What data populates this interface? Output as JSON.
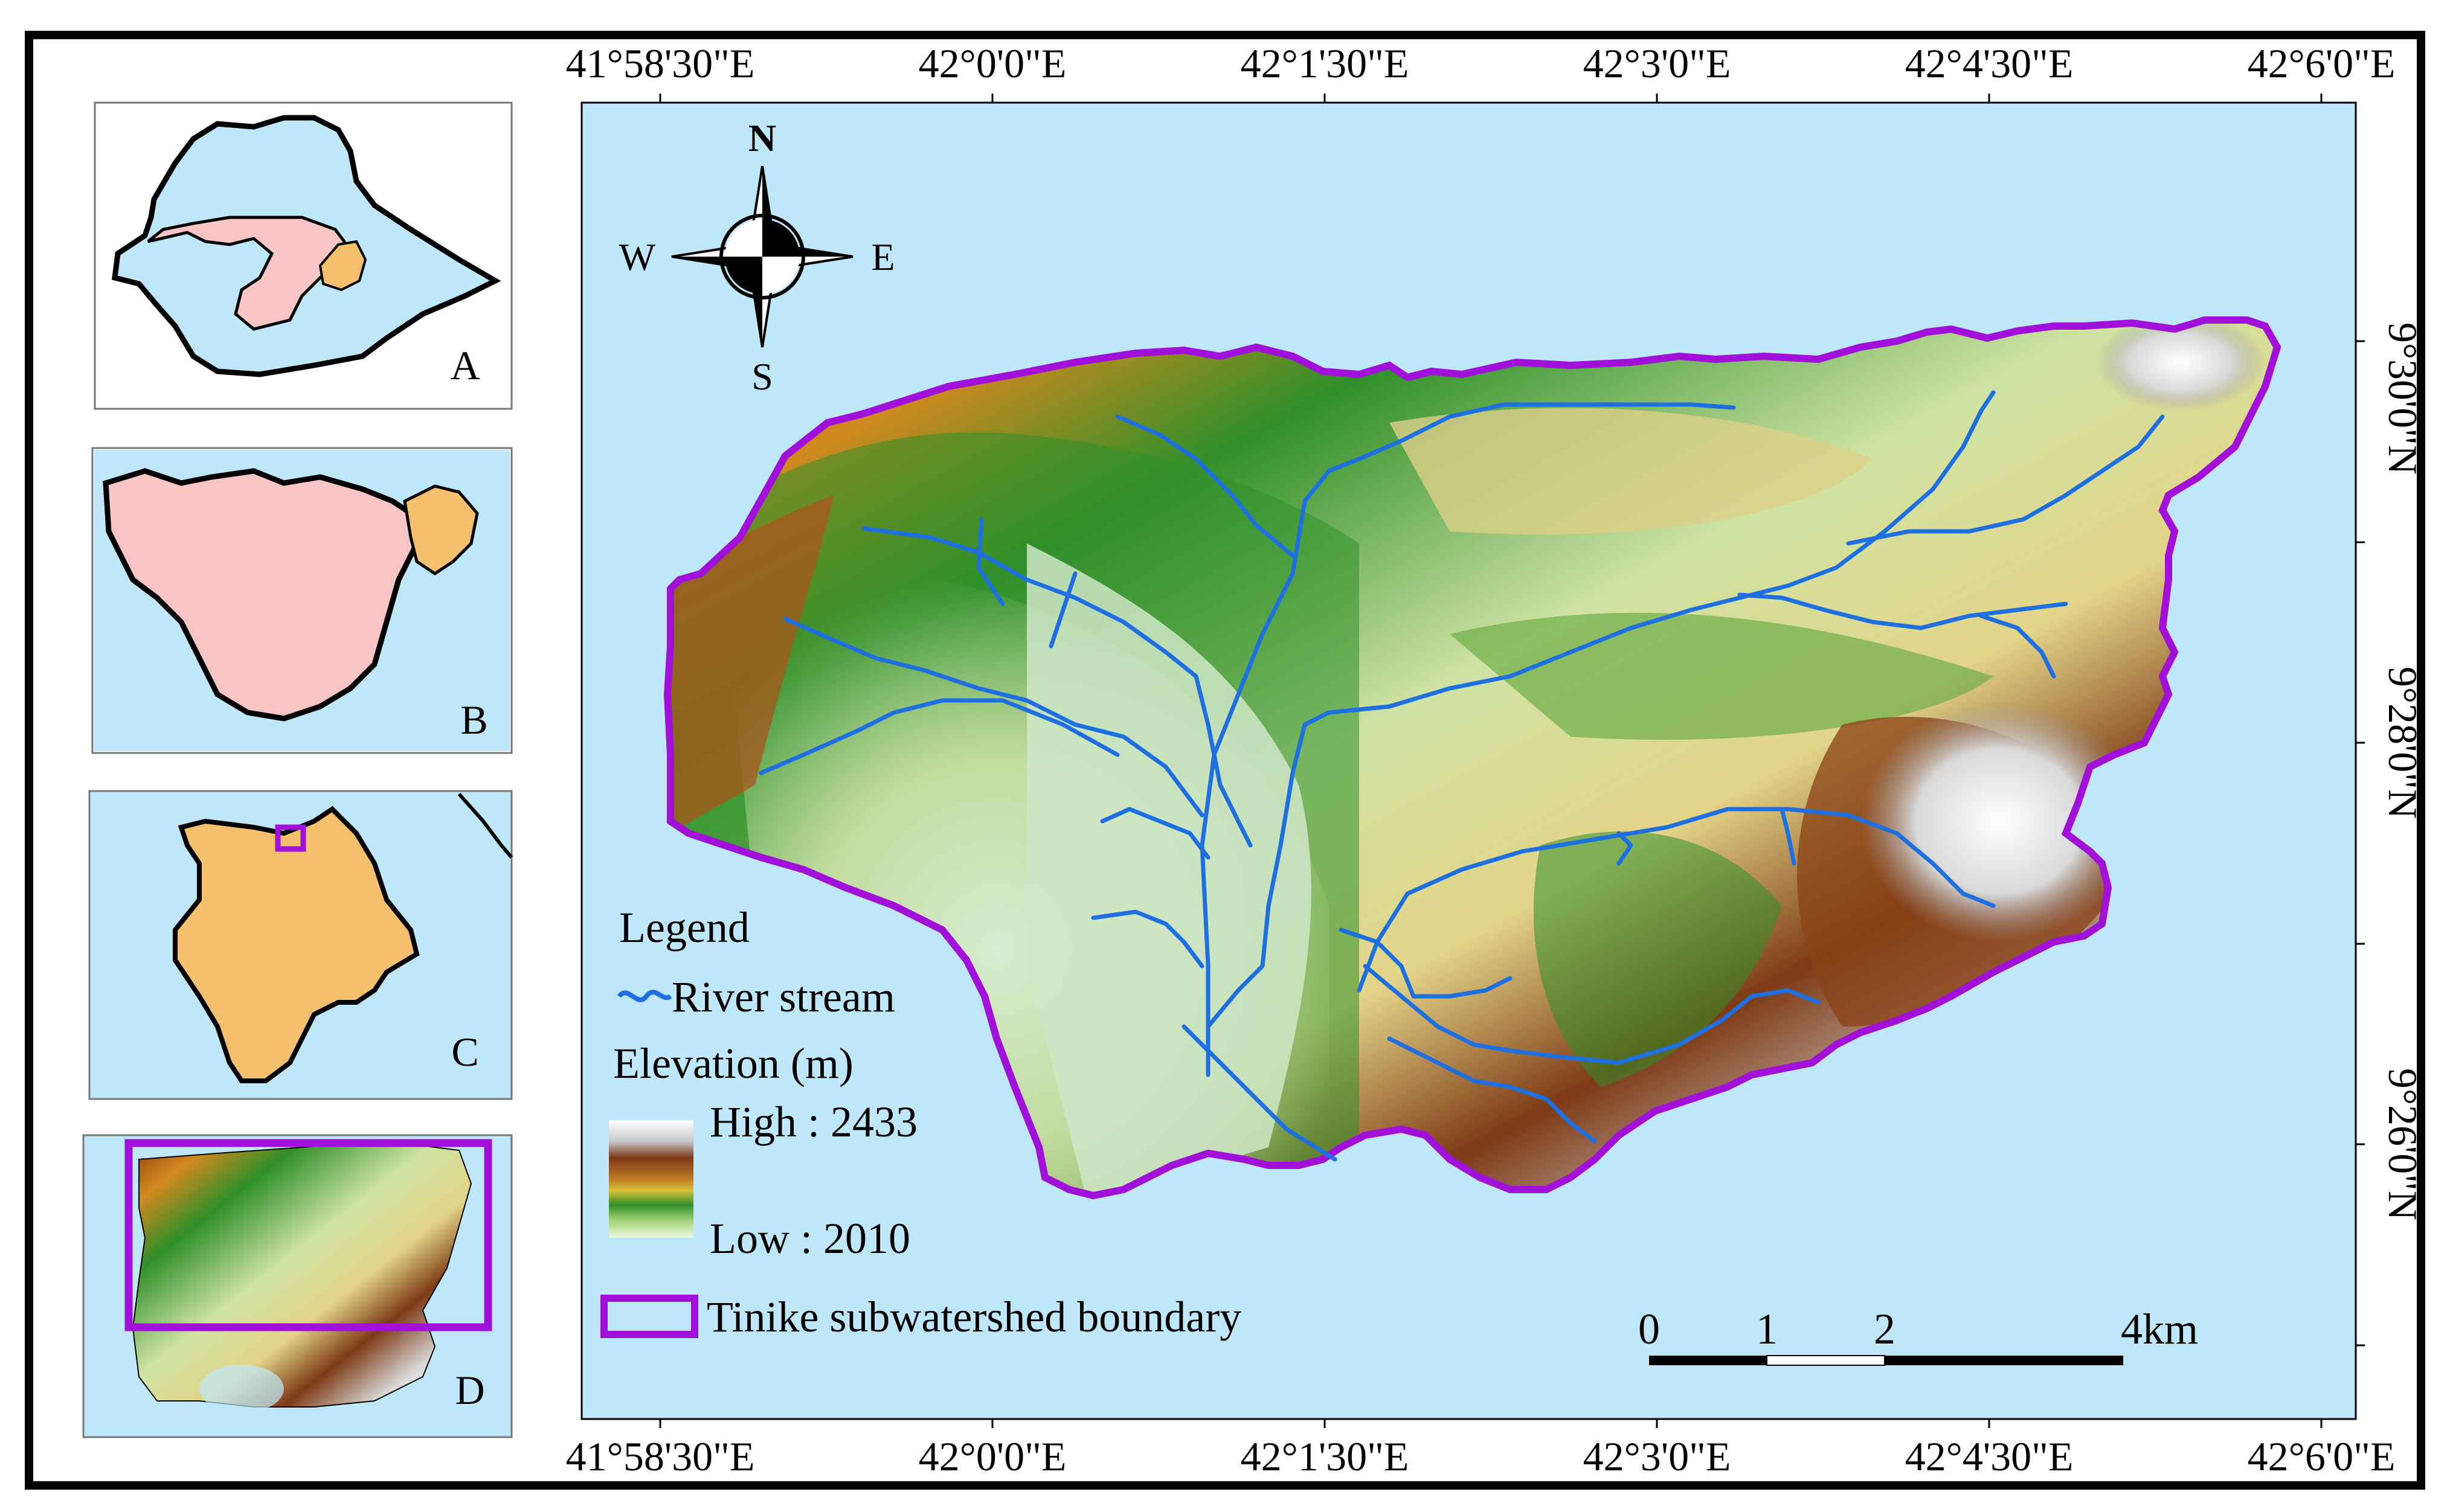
{
  "colors": {
    "water": "#bee8fa",
    "boundary": "#a010d8",
    "river": "#1e6fe0",
    "region_red": "#f9c4c4",
    "region_orange": "#f4c06b",
    "frame": "#000000"
  },
  "icons": [
    "north-arrow-icon",
    "legend-river-swatch",
    "legend-elevation-ramp",
    "legend-boundary-swatch"
  ],
  "top_axis_labels": [
    "41°58'30\"E",
    "42°0'0\"E",
    "42°1'30\"E",
    "42°3'0\"E",
    "42°4'30\"E",
    "42°6'0\"E"
  ],
  "bottom_axis_labels": [
    "41°58'30\"E",
    "42°0'0\"E",
    "42°1'30\"E",
    "42°3'0\"E",
    "42°4'30\"E",
    "42°6'0\"E"
  ],
  "right_axis_labels": [
    "9°30'0\"N",
    "9°28'0\"N",
    "9°26'0\"N"
  ],
  "compass": {
    "n": "N",
    "s": "S",
    "e": "E",
    "w": "W"
  },
  "legend": {
    "title": "Legend",
    "river": "River stream",
    "elevation_title": "Elevation (m)",
    "high": "High : 2433",
    "low": "Low : 2010",
    "boundary": "Tinike subwatershed boundary"
  },
  "scale_bar": {
    "labels": [
      "0",
      "1",
      "2",
      "4km"
    ]
  },
  "insets": [
    "A",
    "B",
    "C",
    "D"
  ]
}
